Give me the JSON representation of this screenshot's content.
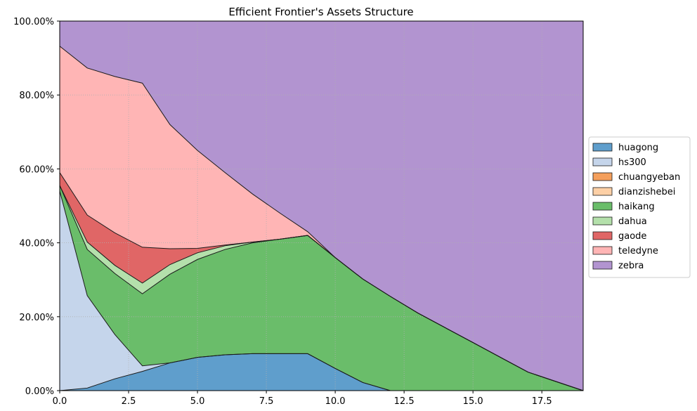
{
  "chart_data": {
    "type": "area",
    "title": "Efficient Frontier's Assets Structure",
    "xlabel": "",
    "ylabel": "",
    "xlim": [
      0,
      19
    ],
    "ylim": [
      0,
      100
    ],
    "stacked": true,
    "grid": true,
    "legend_position": "right",
    "x_ticks": [
      0.0,
      2.5,
      5.0,
      7.5,
      10.0,
      12.5,
      15.0,
      17.5
    ],
    "x_tick_labels": [
      "0.0",
      "2.5",
      "5.0",
      "7.5",
      "10.0",
      "12.5",
      "15.0",
      "17.5"
    ],
    "y_ticks": [
      0,
      20,
      40,
      60,
      80,
      100
    ],
    "y_tick_labels": [
      "0.00%",
      "20.00%",
      "40.00%",
      "60.00%",
      "80.00%",
      "100.00%"
    ],
    "x": [
      0,
      1,
      2,
      3,
      4,
      5,
      6,
      7,
      8,
      9,
      10,
      11,
      12,
      13,
      14,
      15,
      16,
      17,
      18,
      19
    ],
    "series": [
      {
        "name": "huagong",
        "color": "#5f9ecc",
        "values": [
          0,
          0.7,
          3.2,
          5.2,
          7.5,
          9.0,
          9.7,
          10.0,
          10.0,
          10.0,
          6.0,
          2.2,
          0,
          0,
          0,
          0,
          0,
          0,
          0,
          0
        ]
      },
      {
        "name": "hs300",
        "color": "#c5d5eb",
        "values": [
          54,
          25.0,
          12.0,
          1.5,
          0,
          0,
          0,
          0,
          0,
          0,
          0,
          0,
          0,
          0,
          0,
          0,
          0,
          0,
          0,
          0
        ]
      },
      {
        "name": "chuangyeban",
        "color": "#f49f5c",
        "values": [
          0,
          0,
          0,
          0,
          0,
          0,
          0,
          0,
          0,
          0,
          0,
          0,
          0,
          0,
          0,
          0,
          0,
          0,
          0,
          0
        ]
      },
      {
        "name": "dianzishebei",
        "color": "#fdd0a6",
        "values": [
          0,
          0,
          0,
          0,
          0,
          0,
          0,
          0,
          0,
          0,
          0,
          0,
          0,
          0,
          0,
          0,
          0,
          0,
          0,
          0
        ]
      },
      {
        "name": "haikang",
        "color": "#6abd6a",
        "values": [
          1.5,
          12.5,
          16.5,
          19.5,
          24.0,
          26.5,
          28.5,
          30.0,
          31.0,
          32.0,
          30.0,
          28.0,
          25.5,
          21.0,
          17.0,
          13.0,
          9.0,
          5.0,
          2.5,
          0
        ]
      },
      {
        "name": "dahua",
        "color": "#b4e0ab",
        "values": [
          0,
          2.0,
          2.2,
          2.9,
          2.6,
          1.8,
          1.0,
          0.2,
          0,
          0,
          0,
          0,
          0,
          0,
          0,
          0,
          0,
          0,
          0,
          0
        ]
      },
      {
        "name": "gaode",
        "color": "#e06666",
        "values": [
          3.5,
          7.3,
          8.8,
          9.7,
          4.3,
          1.2,
          0.2,
          0,
          0,
          0,
          0,
          0,
          0,
          0,
          0,
          0,
          0,
          0,
          0,
          0
        ]
      },
      {
        "name": "teledyne",
        "color": "#ffb5b5",
        "values": [
          34.2,
          39.8,
          42.3,
          44.4,
          33.6,
          26.5,
          19.6,
          13.0,
          7.0,
          1.0,
          0,
          0,
          0,
          0,
          0,
          0,
          0,
          0,
          0,
          0
        ]
      },
      {
        "name": "zebra",
        "color": "#b294d0",
        "values": [
          6.8,
          12.7,
          15.0,
          16.8,
          28.0,
          35.0,
          41.0,
          46.8,
          52.0,
          57.0,
          64.0,
          69.8,
          74.5,
          79.0,
          83.0,
          87.0,
          91.0,
          95.0,
          97.5,
          100
        ]
      }
    ]
  }
}
